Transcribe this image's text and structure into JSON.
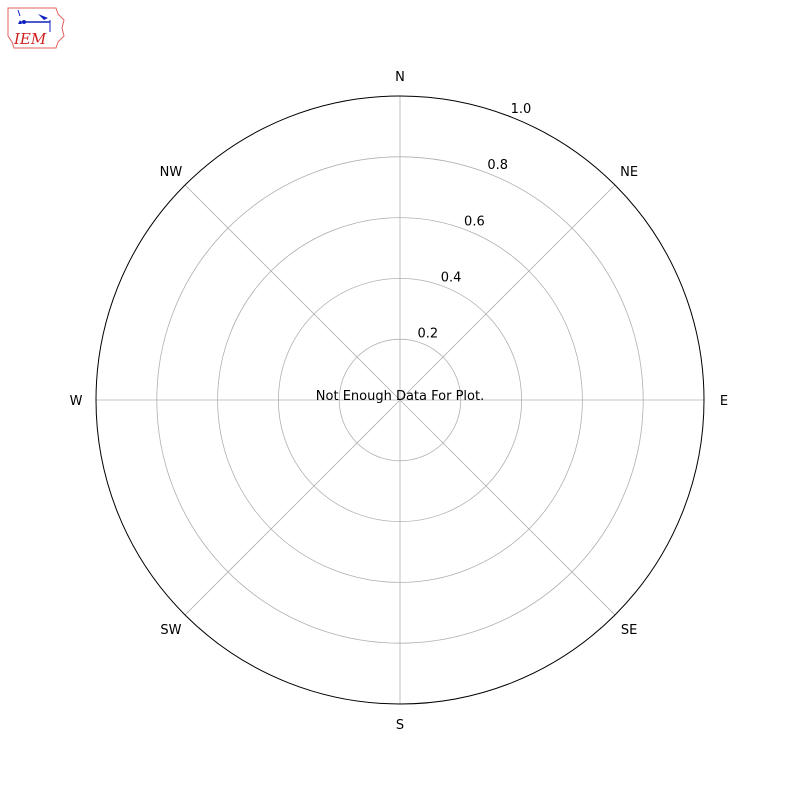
{
  "logo": {
    "text": "IEM",
    "colors": {
      "outline": "#e06060",
      "text": "#d02020",
      "symbol": "#1020c0"
    }
  },
  "chart_data": {
    "type": "polar",
    "title": "",
    "message": "Not Enough Data For Plot.",
    "theta_labels": [
      "N",
      "NE",
      "E",
      "SE",
      "S",
      "SW",
      "W",
      "NW"
    ],
    "theta_direction": "clockwise",
    "theta_zero": "north",
    "rlim": [
      0,
      1.0
    ],
    "r_ticks": [
      0.2,
      0.4,
      0.6,
      0.8,
      1.0
    ],
    "r_tick_labels": [
      "0.2",
      "0.4",
      "0.6",
      "0.8",
      "1.0"
    ],
    "grid": true,
    "series": []
  }
}
